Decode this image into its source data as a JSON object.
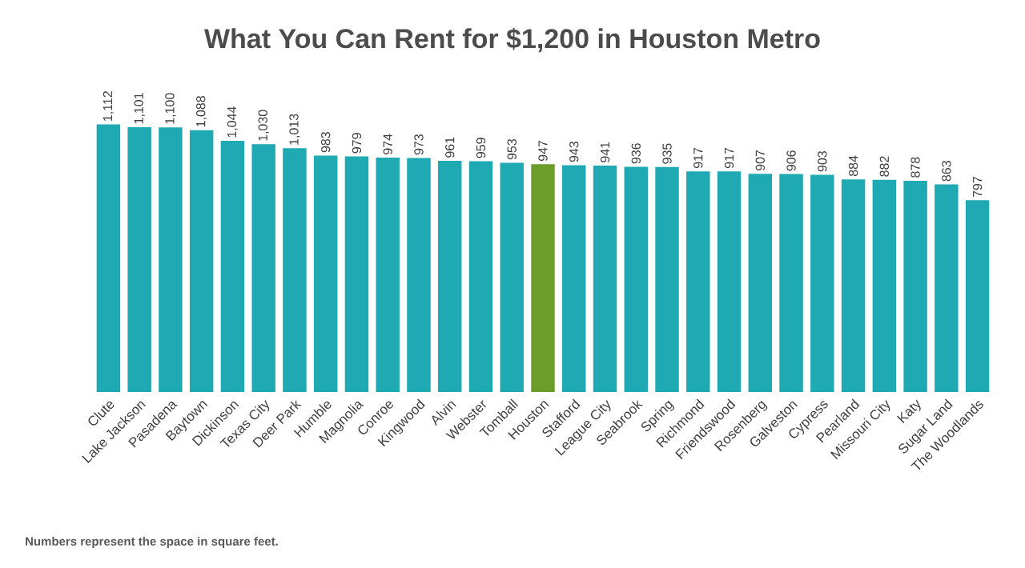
{
  "chart_data": {
    "type": "bar",
    "title": "What You Can Rent for $1,200 in Houston Metro",
    "categories": [
      "Clute",
      "Lake Jackson",
      "Pasadena",
      "Baytown",
      "Dickinson",
      "Texas City",
      "Deer Park",
      "Humble",
      "Magnolia",
      "Conroe",
      "Kingwood",
      "Alvin",
      "Webster",
      "Tomball",
      "Houston",
      "Stafford",
      "League City",
      "Seabrook",
      "Spring",
      "Richmond",
      "Friendswood",
      "Rosenberg",
      "Galveston",
      "Cypress",
      "Pearland",
      "Missouri City",
      "Katy",
      "Sugar Land",
      "The Woodlands"
    ],
    "values": [
      1112,
      1101,
      1100,
      1088,
      1044,
      1030,
      1013,
      983,
      979,
      974,
      973,
      961,
      959,
      953,
      947,
      943,
      941,
      936,
      935,
      917,
      917,
      907,
      906,
      903,
      884,
      882,
      878,
      863,
      797
    ],
    "value_labels": [
      "1,112",
      "1,101",
      "1,100",
      "1,088",
      "1,044",
      "1,030",
      "1,013",
      "983",
      "979",
      "974",
      "973",
      "961",
      "959",
      "953",
      "947",
      "943",
      "941",
      "936",
      "935",
      "917",
      "917",
      "907",
      "906",
      "903",
      "884",
      "882",
      "878",
      "863",
      "797"
    ],
    "colors": [
      "#1fa9b3",
      "#1fa9b3",
      "#1fa9b3",
      "#1fa9b3",
      "#1fa9b3",
      "#1fa9b3",
      "#1fa9b3",
      "#1fa9b3",
      "#1fa9b3",
      "#1fa9b3",
      "#1fa9b3",
      "#1fa9b3",
      "#1fa9b3",
      "#1fa9b3",
      "#6c9d2a",
      "#1fa9b3",
      "#1fa9b3",
      "#1fa9b3",
      "#1fa9b3",
      "#1fa9b3",
      "#1fa9b3",
      "#1fa9b3",
      "#1fa9b3",
      "#1fa9b3",
      "#1fa9b3",
      "#1fa9b3",
      "#1fa9b3",
      "#1fa9b3",
      "#1fa9b3"
    ],
    "annotations": [
      "Numbers represent the space in square feet."
    ]
  }
}
